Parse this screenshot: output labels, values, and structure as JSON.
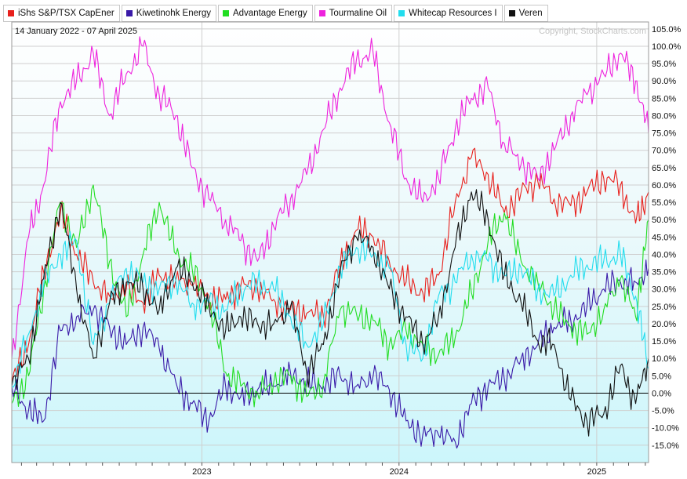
{
  "date_range": "14 January 2022 - 07 April 2025",
  "copyright": "Copyright, StockCharts.com",
  "chart_data": {
    "type": "line",
    "ylim": [
      -20,
      107
    ],
    "y_ticks": [
      105,
      100,
      95,
      90,
      85,
      80,
      75,
      70,
      65,
      60,
      55,
      50,
      45,
      40,
      35,
      30,
      25,
      20,
      15,
      10,
      5,
      0,
      -5,
      -10,
      -15
    ],
    "x_ticks": [
      "2023",
      "2024",
      "2025"
    ],
    "x_tick_positions": [
      "2023-01-01",
      "2024-01-01",
      "2025-01-01"
    ],
    "x_start": "2022-01-14",
    "x_end": "2025-04-07",
    "x_point_dates": [
      "2022-01-14",
      "2022-02-14",
      "2022-03-14",
      "2022-04-14",
      "2022-05-14",
      "2022-06-14",
      "2022-07-14",
      "2022-08-14",
      "2022-09-14",
      "2022-10-14",
      "2022-11-14",
      "2022-12-14",
      "2023-01-14",
      "2023-02-14",
      "2023-03-14",
      "2023-04-14",
      "2023-05-14",
      "2023-06-14",
      "2023-07-14",
      "2023-08-14",
      "2023-09-14",
      "2023-10-14",
      "2023-11-14",
      "2023-12-14",
      "2024-01-14",
      "2024-02-14",
      "2024-03-14",
      "2024-04-14",
      "2024-05-14",
      "2024-06-14",
      "2024-07-14",
      "2024-08-14",
      "2024-09-14",
      "2024-10-14",
      "2024-11-14",
      "2024-12-14",
      "2025-01-14",
      "2025-02-14",
      "2025-03-14",
      "2025-04-07"
    ],
    "series": [
      {
        "name": "iShs S&P/TSX CapEner",
        "color": "#e8201c",
        "values": [
          3,
          14,
          35,
          52,
          40,
          32,
          28,
          30,
          26,
          34,
          33,
          31,
          28,
          27,
          31,
          30,
          27,
          24,
          23,
          22,
          37,
          47,
          45,
          38,
          32,
          29,
          34,
          55,
          68,
          63,
          52,
          58,
          61,
          56,
          54,
          58,
          62,
          60,
          49,
          58
        ]
      },
      {
        "name": "Kiwetinohk Energy",
        "color": "#3a1aa8",
        "values": [
          2,
          -5,
          -8,
          18,
          22,
          24,
          19,
          14,
          19,
          13,
          3,
          -3,
          -8,
          2,
          -1,
          1,
          2,
          6,
          3,
          2,
          5,
          2,
          5,
          1,
          -8,
          -12,
          -12,
          -14,
          -3,
          2,
          4,
          10,
          14,
          19,
          21,
          25,
          30,
          32,
          32,
          36
        ]
      },
      {
        "name": "Advantage Energy",
        "color": "#22dd22",
        "values": [
          -3,
          5,
          30,
          55,
          42,
          60,
          38,
          22,
          40,
          55,
          40,
          36,
          26,
          6,
          2,
          0,
          3,
          5,
          -1,
          3,
          24,
          23,
          21,
          14,
          18,
          14,
          11,
          16,
          29,
          44,
          52,
          38,
          32,
          24,
          19,
          17,
          24,
          33,
          22,
          50
        ]
      },
      {
        "name": "Tourmaline Oil",
        "color": "#ee22dd",
        "values": [
          10,
          45,
          60,
          84,
          90,
          98,
          80,
          92,
          100,
          86,
          80,
          65,
          56,
          50,
          44,
          38,
          48,
          56,
          63,
          76,
          88,
          96,
          98,
          78,
          62,
          55,
          62,
          76,
          85,
          88,
          72,
          66,
          62,
          70,
          80,
          86,
          92,
          98,
          90,
          75
        ]
      },
      {
        "name": "Whitecap Resources I",
        "color": "#22ddee",
        "values": [
          2,
          17,
          31,
          40,
          44,
          14,
          26,
          36,
          32,
          30,
          32,
          26,
          26,
          24,
          30,
          32,
          30,
          22,
          14,
          20,
          36,
          42,
          40,
          36,
          14,
          10,
          28,
          32,
          40,
          38,
          34,
          36,
          30,
          28,
          34,
          37,
          38,
          40,
          28,
          7
        ]
      },
      {
        "name": "Veren",
        "color": "#111111",
        "values": [
          2,
          10,
          33,
          55,
          30,
          10,
          26,
          32,
          30,
          24,
          36,
          32,
          25,
          18,
          22,
          20,
          20,
          25,
          6,
          14,
          35,
          45,
          42,
          30,
          22,
          14,
          22,
          42,
          58,
          50,
          34,
          26,
          15,
          14,
          -2,
          -8,
          -6,
          8,
          -3,
          10
        ]
      }
    ],
    "zero_line": 0
  }
}
